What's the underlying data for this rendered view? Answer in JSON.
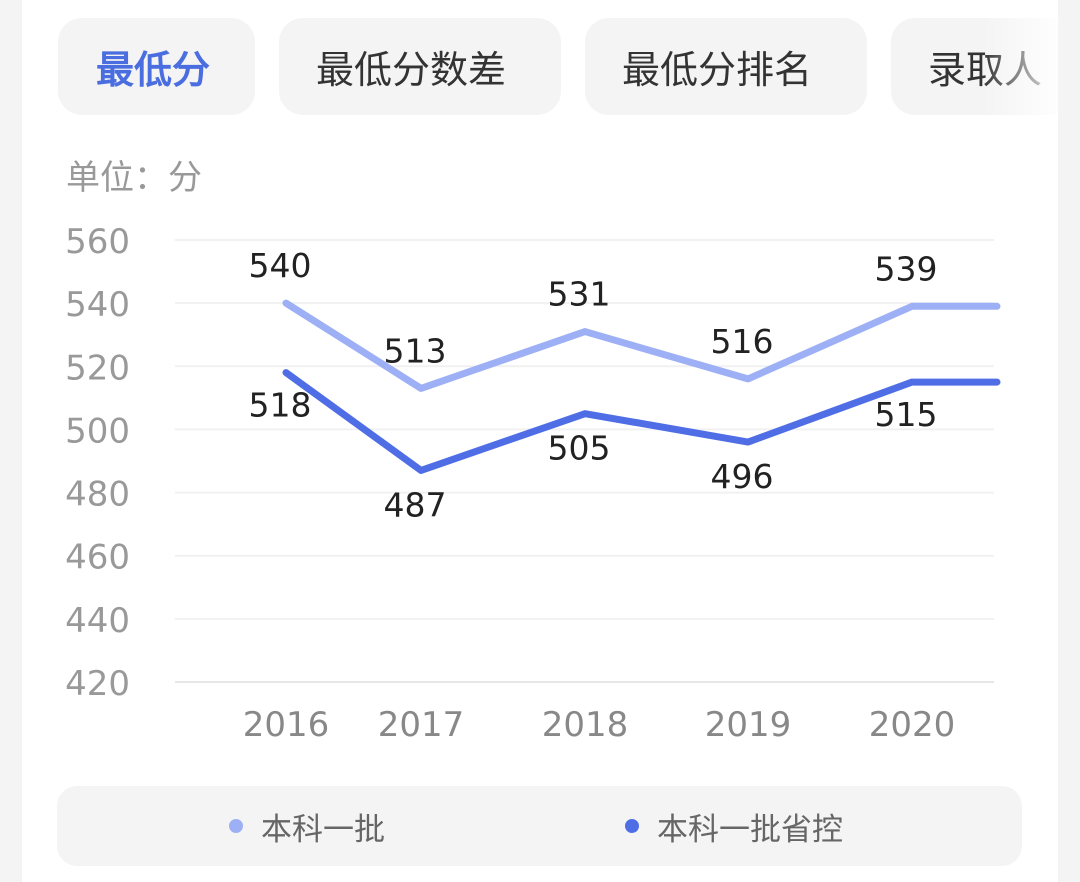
{
  "tabs": [
    {
      "label": "最低分",
      "active": true
    },
    {
      "label": "最低分数差",
      "active": false
    },
    {
      "label": "最低分排名",
      "active": false
    },
    {
      "label": "录取人",
      "active": false
    }
  ],
  "unit_label": "单位：分",
  "colors": {
    "series1": "#9db0f5",
    "series2": "#4f6ee6",
    "active_tab": "#4a6ee0"
  },
  "chart_data": {
    "type": "line",
    "categories": [
      "2016",
      "2017",
      "2018",
      "2019",
      "2020"
    ],
    "y_ticks": [
      "420",
      "440",
      "460",
      "480",
      "500",
      "520",
      "540",
      "560"
    ],
    "ylim": [
      420,
      560
    ],
    "series": [
      {
        "name": "本科一批",
        "values": [
          540,
          513,
          531,
          516,
          539
        ],
        "color": "#9db0f5"
      },
      {
        "name": "本科一批省控",
        "values": [
          518,
          487,
          505,
          496,
          515
        ],
        "color": "#4f6ee6"
      }
    ],
    "grid": true,
    "legend": "bottom"
  }
}
